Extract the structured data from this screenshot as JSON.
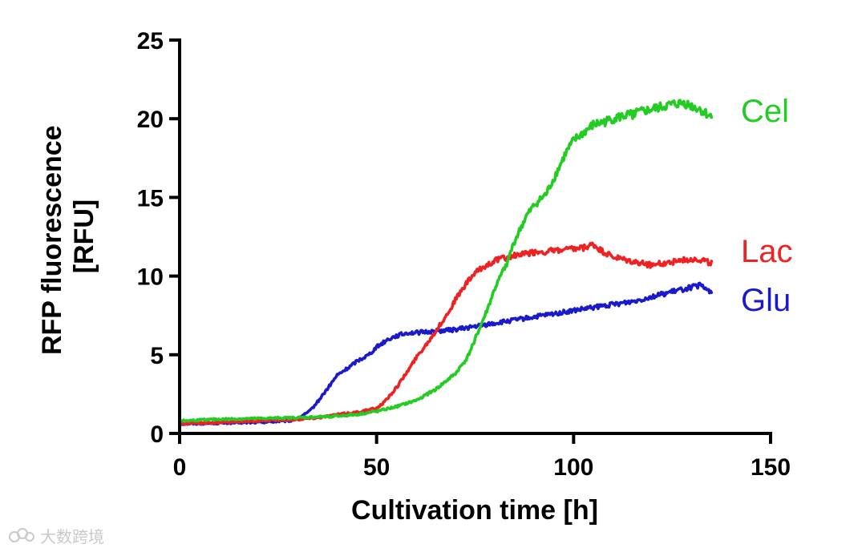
{
  "chart_data": {
    "type": "line",
    "title": "",
    "xlabel": "Cultivation time [h]",
    "ylabel": "RFP fluorescence [RFU]",
    "xlim": [
      0,
      150
    ],
    "ylim": [
      0,
      25
    ],
    "xticks": [
      0,
      50,
      100,
      150
    ],
    "yticks": [
      0,
      5,
      10,
      15,
      20,
      25
    ],
    "xtick_labels": [
      "0",
      "50",
      "100",
      "150"
    ],
    "ytick_labels": [
      "0",
      "5",
      "10",
      "15",
      "20",
      "25"
    ],
    "grid": false,
    "legend": "labels at line ends (right)",
    "series": [
      {
        "name": "Cel",
        "color": "#22cc22",
        "x": [
          0,
          10,
          20,
          30,
          40,
          45,
          50,
          55,
          60,
          65,
          70,
          73,
          75,
          78,
          80,
          83,
          85,
          88,
          90,
          93,
          95,
          98,
          100,
          103,
          105,
          108,
          110,
          115,
          120,
          125,
          128,
          130,
          132,
          135
        ],
        "values": [
          0.8,
          0.9,
          0.95,
          1.0,
          1.1,
          1.2,
          1.4,
          1.7,
          2.1,
          2.8,
          3.8,
          4.8,
          6.0,
          7.8,
          9.2,
          10.8,
          12.2,
          13.8,
          14.5,
          15.2,
          16.2,
          17.8,
          18.6,
          19.2,
          19.6,
          19.8,
          20.0,
          20.3,
          20.6,
          20.9,
          21.0,
          20.8,
          20.6,
          20.1
        ]
      },
      {
        "name": "Lac",
        "color": "#ee2222",
        "x": [
          0,
          10,
          20,
          30,
          35,
          40,
          45,
          50,
          52,
          55,
          58,
          60,
          63,
          65,
          68,
          70,
          73,
          75,
          78,
          80,
          85,
          90,
          95,
          100,
          103,
          105,
          107,
          110,
          115,
          120,
          125,
          130,
          133,
          135
        ],
        "values": [
          0.6,
          0.7,
          0.8,
          0.9,
          1.0,
          1.2,
          1.35,
          1.6,
          2.0,
          2.9,
          4.0,
          4.8,
          5.8,
          6.5,
          7.6,
          8.5,
          9.6,
          10.2,
          10.7,
          11.0,
          11.3,
          11.5,
          11.6,
          11.7,
          11.8,
          12.0,
          11.6,
          11.2,
          10.9,
          10.7,
          10.9,
          11.1,
          11.0,
          10.8
        ]
      },
      {
        "name": "Glu",
        "color": "#1a1acc",
        "x": [
          0,
          10,
          20,
          28,
          30,
          33,
          35,
          38,
          40,
          43,
          45,
          48,
          50,
          53,
          55,
          58,
          60,
          65,
          70,
          75,
          80,
          85,
          90,
          95,
          100,
          105,
          110,
          115,
          120,
          125,
          130,
          132,
          135
        ],
        "values": [
          0.6,
          0.65,
          0.7,
          0.8,
          0.95,
          1.4,
          2.0,
          3.0,
          3.7,
          4.2,
          4.6,
          5.0,
          5.5,
          6.0,
          6.2,
          6.4,
          6.4,
          6.5,
          6.6,
          6.8,
          7.0,
          7.2,
          7.4,
          7.6,
          7.8,
          8.0,
          8.2,
          8.4,
          8.7,
          9.0,
          9.3,
          9.4,
          9.0
        ]
      }
    ]
  },
  "watermark": {
    "text": "大数跨境"
  }
}
